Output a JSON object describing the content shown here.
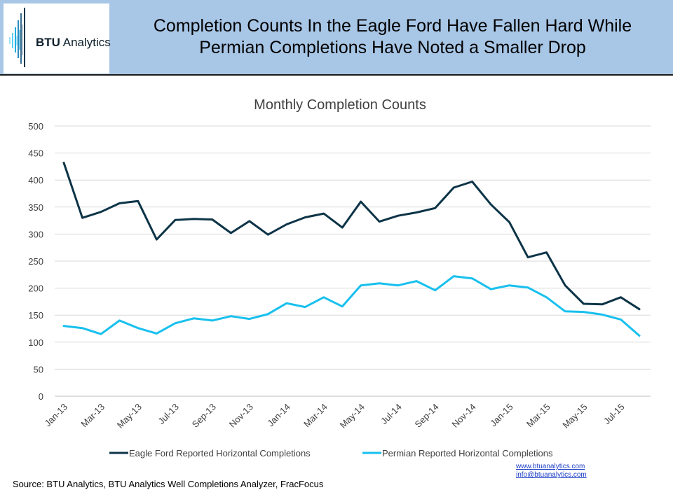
{
  "header": {
    "logo_text_bold": "BTU",
    "logo_text_rest": " Analytics",
    "title_line1": "Completion Counts In the Eagle Ford Have Fallen Hard While",
    "title_line2": "Permian Completions Have Noted a Smaller Drop",
    "background_color": "#a8c6e6"
  },
  "chart_data": {
    "type": "line",
    "title": "Monthly Completion Counts",
    "xlabel": "",
    "ylabel": "",
    "ylim": [
      0,
      500
    ],
    "yticks": [
      0,
      50,
      100,
      150,
      200,
      250,
      300,
      350,
      400,
      450,
      500
    ],
    "grid": true,
    "legend_position": "bottom",
    "categories": [
      "Jan-13",
      "Feb-13",
      "Mar-13",
      "Apr-13",
      "May-13",
      "Jun-13",
      "Jul-13",
      "Aug-13",
      "Sep-13",
      "Oct-13",
      "Nov-13",
      "Dec-13",
      "Jan-14",
      "Feb-14",
      "Mar-14",
      "Apr-14",
      "May-14",
      "Jun-14",
      "Jul-14",
      "Aug-14",
      "Sep-14",
      "Oct-14",
      "Nov-14",
      "Dec-14",
      "Jan-15",
      "Feb-15",
      "Mar-15",
      "Apr-15",
      "May-15",
      "Jun-15",
      "Jul-15",
      "Aug-15"
    ],
    "tick_labels": [
      "Jan-13",
      "Mar-13",
      "May-13",
      "Jul-13",
      "Sep-13",
      "Nov-13",
      "Jan-14",
      "Mar-14",
      "May-14",
      "Jul-14",
      "Sep-14",
      "Nov-14",
      "Jan-15",
      "Mar-15",
      "May-15",
      "Jul-15"
    ],
    "series": [
      {
        "name": "Eagle Ford Reported Horizontal Completions",
        "color": "#0d3447",
        "values": [
          432,
          330,
          341,
          357,
          361,
          290,
          326,
          328,
          327,
          302,
          324,
          299,
          318,
          331,
          338,
          312,
          360,
          323,
          334,
          340,
          348,
          386,
          397,
          355,
          322,
          257,
          266,
          205,
          171,
          170,
          183,
          161
        ]
      },
      {
        "name": "Permian Reported Horizontal Completions",
        "color": "#18c0ee",
        "values": [
          130,
          126,
          115,
          140,
          126,
          116,
          135,
          144,
          140,
          148,
          143,
          152,
          172,
          165,
          183,
          166,
          205,
          209,
          205,
          213,
          196,
          222,
          218,
          198,
          205,
          201,
          183,
          157,
          156,
          151,
          142,
          112
        ]
      }
    ]
  },
  "footer": {
    "source": "Source: BTU Analytics,  BTU Analytics Well Completions Analyzer, FracFocus",
    "website": "www.btuanalytics.com",
    "email": "info@btuanalytics.com"
  }
}
